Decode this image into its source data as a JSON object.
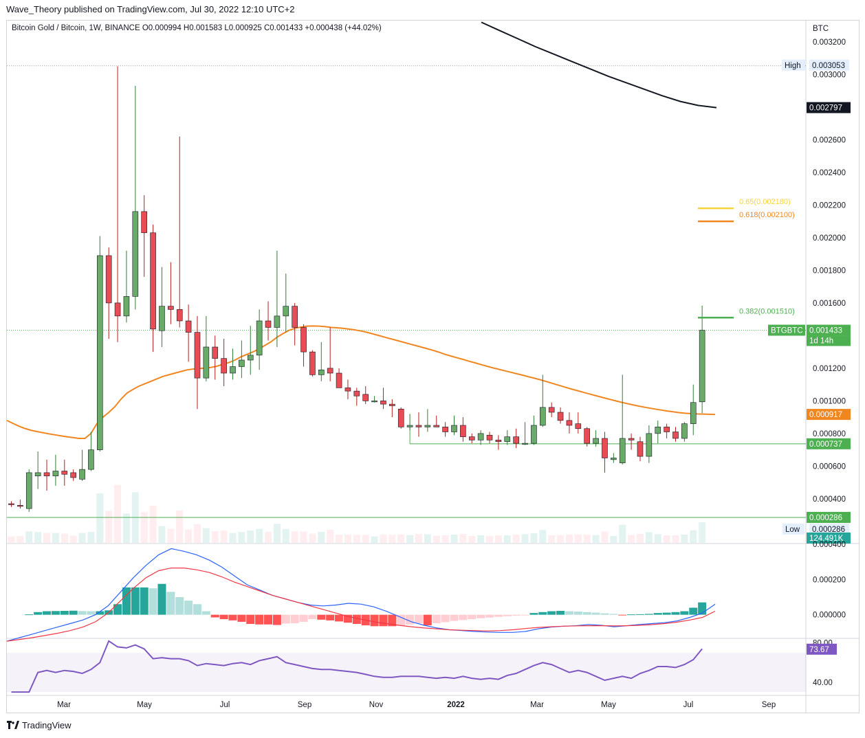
{
  "header": {
    "published_text": "Wave_Theory published on TradingView.com, Jul 30, 2022 12:10 UTC+2",
    "legend_text": "Bitcoin Gold / Bitcoin, 1W, BINANCE  O0.000994  H0.001583  L0.000925  C0.001433  +0.000438 (+44.02%)"
  },
  "footer": {
    "brand": "TradingView"
  },
  "price_axis": {
    "currency": "BTC",
    "ticks": [
      "0.003200",
      "0.003000",
      "0.002600",
      "0.002400",
      "0.002200",
      "0.002000",
      "0.001800",
      "0.001600",
      "0.001200",
      "0.001000",
      "0.000800",
      "0.000600",
      "0.000400"
    ],
    "tags": {
      "high_label": "High",
      "high_value": "0.003053",
      "ma_black": "0.002797",
      "symbol": "BTGBTC",
      "last": "0.001433",
      "countdown": "1d 14h",
      "ma_orange": "0.000917",
      "support": "0.000737",
      "low_line": "0.000286",
      "low_label": "Low",
      "low_value": "0.000286",
      "volume": "124.491K"
    }
  },
  "fib_levels": [
    {
      "label": "0.65(0.002180)",
      "color": "#f7d33a"
    },
    {
      "label": "0.618(0.002100)",
      "color": "#f0861f"
    },
    {
      "label": "0.382(0.001510)",
      "color": "#4caf50"
    }
  ],
  "macd_axis": {
    "ticks": [
      "0.000400",
      "0.000200",
      "0.000000"
    ]
  },
  "rsi": {
    "ticks": [
      "80.00",
      "40.00"
    ],
    "value": "73.67"
  },
  "time_axis": {
    "labels": [
      "Mar",
      "May",
      "Jul",
      "Sep",
      "Nov",
      "2022",
      "Mar",
      "May",
      "Jul",
      "Sep"
    ]
  },
  "colors": {
    "up": "#6aab6a",
    "down": "#e84c55",
    "orange_ma": "#f0861f",
    "black_ma": "#131722",
    "macd": "#2962ff",
    "signal": "#f23645",
    "rsi": "#7e57c2"
  },
  "chart_data": {
    "type": "candlestick",
    "title": "Bitcoin Gold / Bitcoin, 1W, BINANCE",
    "y_unit": "BTC",
    "ylim": [
      0.00013,
      0.00333
    ],
    "candles": [
      [
        0.00037,
        0.000365,
        0.000385,
        0.00035
      ],
      [
        0.00036,
        0.000355,
        0.000395,
        0.00034
      ],
      [
        0.00034,
        0.00056,
        0.00058,
        0.00032
      ],
      [
        0.00054,
        0.00056,
        0.00069,
        0.00046
      ],
      [
        0.00056,
        0.00054,
        0.00064,
        0.00045
      ],
      [
        0.00054,
        0.00057,
        0.00067,
        0.00048
      ],
      [
        0.00057,
        0.00055,
        0.00064,
        0.00048
      ],
      [
        0.00056,
        0.00053,
        0.00058,
        0.00051
      ],
      [
        0.00052,
        0.00058,
        0.0007,
        0.00051
      ],
      [
        0.00058,
        0.0007,
        0.00081,
        0.00057
      ],
      [
        0.0007,
        0.00189,
        0.00201,
        0.00069
      ],
      [
        0.00189,
        0.0016,
        0.00194,
        0.00138
      ],
      [
        0.0016,
        0.00152,
        0.00305,
        0.00136
      ],
      [
        0.00152,
        0.00164,
        0.00192,
        0.00148
      ],
      [
        0.00164,
        0.00216,
        0.00293,
        0.00156
      ],
      [
        0.00216,
        0.00203,
        0.00226,
        0.00176
      ],
      [
        0.00203,
        0.00144,
        0.00208,
        0.0013
      ],
      [
        0.00143,
        0.00158,
        0.00182,
        0.00133
      ],
      [
        0.00158,
        0.00156,
        0.00185,
        0.00147
      ],
      [
        0.00156,
        0.00149,
        0.00262,
        0.00145
      ],
      [
        0.00149,
        0.00142,
        0.00159,
        0.00124
      ],
      [
        0.00142,
        0.00114,
        0.00152,
        0.00095
      ],
      [
        0.00114,
        0.00133,
        0.00152,
        0.00112
      ],
      [
        0.00133,
        0.00126,
        0.0014,
        0.00113
      ],
      [
        0.00126,
        0.00117,
        0.00138,
        0.00109
      ],
      [
        0.00117,
        0.00121,
        0.00132,
        0.00113
      ],
      [
        0.00121,
        0.00125,
        0.00137,
        0.00114
      ],
      [
        0.00125,
        0.00128,
        0.00146,
        0.00116
      ],
      [
        0.00128,
        0.00149,
        0.00156,
        0.00119
      ],
      [
        0.00149,
        0.00145,
        0.00161,
        0.00137
      ],
      [
        0.00145,
        0.00152,
        0.00192,
        0.00133
      ],
      [
        0.00152,
        0.00158,
        0.00178,
        0.00142
      ],
      [
        0.00158,
        0.00145,
        0.0016,
        0.00134
      ],
      [
        0.00145,
        0.0013,
        0.00147,
        0.00121
      ],
      [
        0.0013,
        0.00116,
        0.00131,
        0.00115
      ],
      [
        0.00116,
        0.00119,
        0.00136,
        0.00112
      ],
      [
        0.0012,
        0.00117,
        0.00145,
        0.00112
      ],
      [
        0.00117,
        0.00108,
        0.0012,
        0.00108
      ],
      [
        0.00108,
        0.00106,
        0.00113,
        0.00101
      ],
      [
        0.00106,
        0.00103,
        0.00108,
        0.00097
      ],
      [
        0.00104,
        0.001,
        0.00109,
        0.00098
      ],
      [
        0.001,
        0.001,
        0.00103,
        0.00099
      ],
      [
        0.001,
        0.00098,
        0.00108,
        0.00095
      ],
      [
        0.00098,
        0.00097,
        0.00101,
        0.0009
      ],
      [
        0.00095,
        0.00084,
        0.00096,
        0.00083
      ],
      [
        0.00084,
        0.00085,
        0.00092,
        0.00082
      ],
      [
        0.00085,
        0.00084,
        0.00093,
        0.00078
      ],
      [
        0.00084,
        0.00085,
        0.00095,
        0.00081
      ],
      [
        0.00085,
        0.00084,
        0.00091,
        0.00084
      ],
      [
        0.00084,
        0.00081,
        0.00087,
        0.00078
      ],
      [
        0.00081,
        0.00085,
        0.00091,
        0.00079
      ],
      [
        0.00085,
        0.00078,
        0.0009,
        0.00075
      ],
      [
        0.00078,
        0.00076,
        0.0008,
        0.00074
      ],
      [
        0.00076,
        0.0008,
        0.00082,
        0.00073
      ],
      [
        0.00079,
        0.00076,
        0.00081,
        0.00074
      ],
      [
        0.00076,
        0.00075,
        0.00079,
        0.0007
      ],
      [
        0.00075,
        0.00078,
        0.00082,
        0.00073
      ],
      [
        0.00078,
        0.00074,
        0.00083,
        0.00071
      ],
      [
        0.00074,
        0.00074,
        0.00087,
        0.00073
      ],
      [
        0.00074,
        0.00085,
        0.00091,
        0.00073
      ],
      [
        0.00085,
        0.00096,
        0.00116,
        0.00084
      ],
      [
        0.00096,
        0.00093,
        0.00099,
        0.0009
      ],
      [
        0.00093,
        0.00088,
        0.00096,
        0.00086
      ],
      [
        0.00088,
        0.00085,
        0.00093,
        0.0008
      ],
      [
        0.00086,
        0.00083,
        0.00093,
        0.0008
      ],
      [
        0.00083,
        0.00074,
        0.00084,
        0.00072
      ],
      [
        0.00074,
        0.00077,
        0.00082,
        0.00072
      ],
      [
        0.00077,
        0.00065,
        0.00081,
        0.00056
      ],
      [
        0.00064,
        0.00065,
        0.00068,
        0.00062
      ],
      [
        0.00062,
        0.00077,
        0.00116,
        0.00061
      ],
      [
        0.00077,
        0.00076,
        0.0008,
        0.0007
      ],
      [
        0.00075,
        0.00066,
        0.00078,
        0.00063
      ],
      [
        0.00066,
        0.0008,
        0.00085,
        0.00062
      ],
      [
        0.0008,
        0.00084,
        0.00088,
        0.00074
      ],
      [
        0.00084,
        0.00081,
        0.00086,
        0.00077
      ],
      [
        0.00081,
        0.00077,
        0.00084,
        0.00075
      ],
      [
        0.00077,
        0.00086,
        0.00087,
        0.00075
      ],
      [
        0.00086,
        0.00099,
        0.0011,
        0.00079
      ],
      [
        0.000994,
        0.001433,
        0.001583,
        0.000925
      ]
    ],
    "orange_ma": [
      0.00088,
      0.000862,
      0.000845,
      0.000831,
      0.00082,
      0.000812,
      0.000805,
      0.000798,
      0.000792,
      0.000786,
      0.00078,
      0.000775,
      0.00077,
      0.00077,
      0.0008,
      0.00086,
      0.0009,
      0.00093,
      0.000965,
      0.00101,
      0.001048,
      0.00107,
      0.00109,
      0.001105,
      0.00112,
      0.001135,
      0.00115,
      0.00116,
      0.00117,
      0.00118,
      0.00119,
      0.001195,
      0.001198,
      0.0012,
      0.001205,
      0.001212,
      0.001225,
      0.001235,
      0.00125,
      0.00127,
      0.001285,
      0.0013,
      0.001318,
      0.00134,
      0.001362,
      0.00139,
      0.001412,
      0.001432,
      0.001445,
      0.001452,
      0.001458,
      0.001459,
      0.001458,
      0.001455,
      0.00145,
      0.001448,
      0.001445,
      0.00144,
      0.001435,
      0.001428,
      0.00142,
      0.00141,
      0.0014,
      0.00139,
      0.00138,
      0.00137,
      0.00136,
      0.00135,
      0.00134,
      0.00133,
      0.00132,
      0.00131,
      0.001298,
      0.001285,
      0.001275,
      0.001264,
      0.001254,
      0.001243,
      0.001233,
      0.001222,
      0.001212,
      0.001202,
      0.001193,
      0.001184,
      0.001175,
      0.001166,
      0.001157,
      0.001147,
      0.001138,
      0.001128,
      0.001117,
      0.001106,
      0.001095,
      0.001084,
      0.001073,
      0.001063,
      0.001053,
      0.001043,
      0.001033,
      0.001023,
      0.001014,
      0.001004,
      0.000995,
      0.000986,
      0.000978,
      0.00097,
      0.000963,
      0.000956,
      0.00095,
      0.000944,
      0.000938,
      0.000933,
      0.000928,
      0.000924,
      0.000922,
      0.00092,
      0.000919,
      0.000918,
      0.000917
    ],
    "black_ma": [
      0.00332,
      0.00327,
      0.00322,
      0.00317,
      0.003125,
      0.00308,
      0.003035,
      0.00299,
      0.00295,
      0.00291,
      0.00287,
      0.002835,
      0.00281,
      0.002797
    ],
    "macd": {
      "ylim": [
        -0.00013,
        0.0004
      ],
      "ticks": [
        0.0004,
        0.0002,
        0.0
      ],
      "histogram": [
        0,
        0,
        2e-06,
        1.5e-05,
        2e-05,
        2.1e-05,
        2.2e-05,
        2.3e-05,
        2.1e-05,
        2e-05,
        2e-05,
        2.5e-05,
        6e-05,
        0.000155,
        0.000155,
        0.000155,
        0.00015,
        0.000175,
        0.00013,
        0.0001,
        8e-05,
        6e-05,
        2e-05,
        -1.5e-05,
        -2.5e-05,
        -3.2e-05,
        -4e-05,
        -5.2e-05,
        -5.5e-05,
        -5.5e-05,
        -5.8e-05,
        -5e-05,
        -4.8e-05,
        -4e-05,
        -2.5e-05,
        -2.8e-05,
        -3.2e-05,
        -3.8e-05,
        -4.5e-05,
        -5.2e-05,
        -6e-05,
        -6.5e-05,
        -6.5e-05,
        -6.5e-05,
        -6.2e-05,
        -5.5e-05,
        -4.8e-05,
        -6e-05,
        -4.8e-05,
        -4.2e-05,
        -3.5e-05,
        -3e-05,
        -2.5e-05,
        -2e-05,
        -1.6e-05,
        -1.2e-05,
        -8e-06,
        -5e-06,
        -2e-06,
        1e-05,
        1.5e-05,
        2e-05,
        2.2e-05,
        2e-05,
        1.8e-05,
        1.5e-05,
        1.2e-05,
        8e-06,
        5e-06,
        -3e-06,
        2e-06,
        3e-06,
        5e-06,
        1e-05,
        1.2e-05,
        1.5e-05,
        2e-05,
        4e-05,
        7e-05
      ],
      "macd_line": [
        -0.00015,
        -0.00013,
        -0.00011,
        -9e-05,
        -7e-05,
        -5e-05,
        -3e-05,
        0.0,
        5e-05,
        0.00013,
        0.00021,
        0.00028,
        0.00034,
        0.000375,
        0.00036,
        0.00034,
        0.00031,
        0.00027,
        0.00022,
        0.00017,
        0.00014,
        0.00011,
        9e-05,
        7e-05,
        5.5e-05,
        5e-05,
        5.5e-05,
        6.5e-05,
        6e-05,
        4.5e-05,
        2e-05,
        -1e-05,
        -4e-05,
        -6e-05,
        -7.5e-05,
        -8.5e-05,
        -9e-05,
        -9.5e-05,
        -9.8e-05,
        -0.0001,
        -0.0001,
        -9.5e-05,
        -8e-05,
        -7e-05,
        -6.5e-05,
        -6.2e-05,
        -5.5e-05,
        -6e-05,
        -6.8e-05,
        -6.2e-05,
        -5.5e-05,
        -5e-05,
        -4.5e-05,
        -3.5e-05,
        -1.5e-05,
        1e-05,
        6e-05
      ],
      "signal_line": [
        -0.00015,
        -0.00014,
        -0.00013,
        -0.000118,
        -0.000105,
        -9e-05,
        -7e-05,
        -4e-05,
        1e-05,
        8e-05,
        0.00015,
        0.00021,
        0.00025,
        0.000265,
        0.000265,
        0.000255,
        0.00024,
        0.000215,
        0.000185,
        0.00016,
        0.000135,
        0.00011,
        9e-05,
        7e-05,
        5e-05,
        3e-05,
        1e-05,
        -1e-05,
        -2.5e-05,
        -4e-05,
        -5e-05,
        -6e-05,
        -6.8e-05,
        -7.5e-05,
        -8e-05,
        -8.5e-05,
        -8.8e-05,
        -9e-05,
        -9.2e-05,
        -9e-05,
        -8.5e-05,
        -7.8e-05,
        -7.2e-05,
        -6.8e-05,
        -6.5e-05,
        -6.3e-05,
        -6.2e-05,
        -6.2e-05,
        -6.3e-05,
        -6.2e-05,
        -6e-05,
        -5.6e-05,
        -5e-05,
        -4.2e-05,
        -3e-05,
        -1.5e-05,
        2e-05
      ]
    },
    "rsi_series": [
      30,
      30,
      30,
      50,
      52,
      50,
      52,
      51,
      49,
      53,
      60,
      82,
      76,
      75,
      78,
      74,
      64,
      65,
      64,
      64,
      62,
      57,
      59,
      58,
      57,
      59,
      60,
      58,
      62,
      64,
      66,
      60,
      58,
      56,
      54,
      53,
      53,
      52,
      51,
      50,
      48,
      46,
      45,
      45,
      46,
      46,
      46,
      45,
      44,
      45,
      44,
      46,
      44,
      43,
      44,
      43,
      47,
      49,
      53,
      57,
      60,
      58,
      54,
      50,
      52,
      50,
      46,
      42,
      44,
      46,
      44,
      49,
      52,
      56,
      56,
      55,
      58,
      63,
      74
    ]
  }
}
